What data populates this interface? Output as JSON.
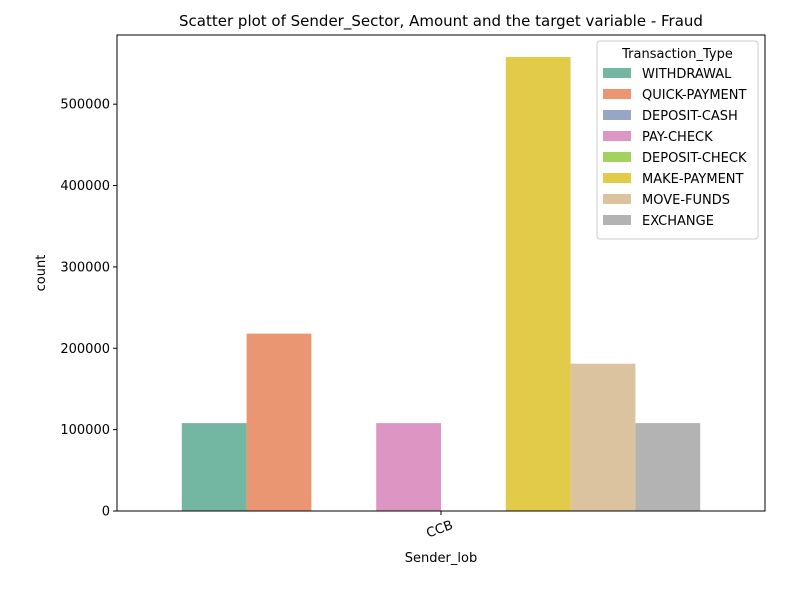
{
  "chart_data": {
    "type": "bar",
    "title": "Scatter plot of Sender_Sector, Amount and the target variable - Fraud",
    "xlabel": "Sender_lob",
    "ylabel": "count",
    "categories": [
      "CCB"
    ],
    "ylim": [
      0,
      585000
    ],
    "yticks": [
      0,
      100000,
      200000,
      300000,
      400000,
      500000
    ],
    "grid": false,
    "legend": {
      "title": "Transaction_Type",
      "placement": "top-right"
    },
    "series": [
      {
        "name": "WITHDRAWAL",
        "color": "#73b7a2",
        "values": [
          108000
        ]
      },
      {
        "name": "QUICK-PAYMENT",
        "color": "#ea9673",
        "values": [
          218000
        ]
      },
      {
        "name": "DEPOSIT-CASH",
        "color": "#97a5c7",
        "values": [
          0
        ]
      },
      {
        "name": "PAY-CHECK",
        "color": "#dd96c3",
        "values": [
          108000
        ]
      },
      {
        "name": "DEPOSIT-CHECK",
        "color": "#a4d25f",
        "values": [
          0
        ]
      },
      {
        "name": "MAKE-PAYMENT",
        "color": "#e3cb4a",
        "values": [
          558000
        ]
      },
      {
        "name": "MOVE-FUNDS",
        "color": "#dcc39f",
        "values": [
          181000
        ]
      },
      {
        "name": "EXCHANGE",
        "color": "#b3b3b3",
        "values": [
          108000
        ]
      }
    ]
  }
}
